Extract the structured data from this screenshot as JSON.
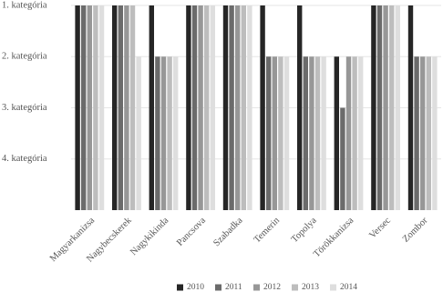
{
  "chart_data": {
    "type": "bar",
    "categories": [
      "Magyarkanizsa",
      "Nagybecskerek",
      "Nagykikinda",
      "Pancsova",
      "Szabadka",
      "Temerin",
      "Topolya",
      "Törökkanizsa",
      "Versec",
      "Zombor"
    ],
    "series": [
      {
        "name": "2010",
        "color": "#262626",
        "values": [
          1,
          1,
          1,
          1,
          1,
          1,
          1,
          2,
          1,
          1
        ]
      },
      {
        "name": "2011",
        "color": "#6b6b6b",
        "values": [
          1,
          1,
          2,
          1,
          1,
          2,
          2,
          3,
          1,
          2
        ]
      },
      {
        "name": "2012",
        "color": "#979797",
        "values": [
          1,
          1,
          2,
          1,
          1,
          2,
          2,
          2,
          1,
          2
        ]
      },
      {
        "name": "2013",
        "color": "#bdbdbd",
        "values": [
          1,
          1,
          2,
          1,
          1,
          2,
          2,
          2,
          1,
          2
        ]
      },
      {
        "name": "2014",
        "color": "#dedede",
        "values": [
          1,
          2,
          2,
          1,
          1,
          2,
          2,
          2,
          1,
          2
        ]
      }
    ],
    "ylim": [
      5,
      1
    ],
    "yticks": [
      {
        "value": 1,
        "label": "1. kategória"
      },
      {
        "value": 2,
        "label": "2. kategória"
      },
      {
        "value": 3,
        "label": "3. kategória"
      },
      {
        "value": 4,
        "label": "4. kategória"
      }
    ],
    "grid": true,
    "legend": "bottom"
  }
}
